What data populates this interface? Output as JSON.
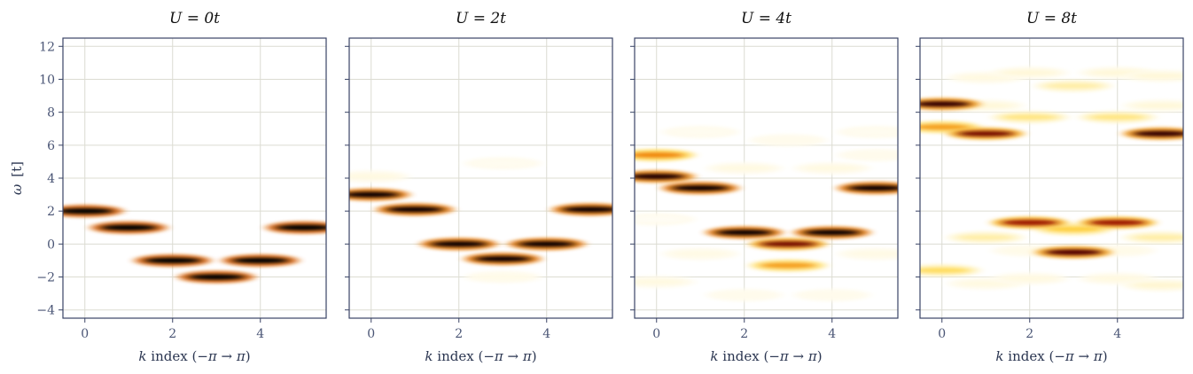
{
  "chart_data": {
    "type": "heatmap",
    "colormap": [
      "#ffffff",
      "#fff3c0",
      "#ffd84a",
      "#f08a10",
      "#b51d00",
      "#3a0000",
      "#000000"
    ],
    "grid": true,
    "x_tick_values": [
      0,
      2,
      4
    ],
    "x_tick_labels": [
      "0",
      "2",
      "4"
    ],
    "xlim": [
      -0.5,
      5.5
    ],
    "y_tick_values": [
      12,
      10,
      8,
      6,
      4,
      2,
      0,
      -2,
      -4
    ],
    "y_tick_labels": [
      "12",
      "10",
      "8",
      "6",
      "4",
      "2",
      "0",
      "−2",
      "−4"
    ],
    "ylim": [
      -4.5,
      12.5
    ],
    "xlabel_parts": {
      "var": "k",
      "text": " index (",
      "from": "−π",
      "arrow": " → ",
      "to": "π",
      "close": ")"
    },
    "ylabel_parts": {
      "var": "ω",
      "unit": "[t]"
    },
    "panels": [
      {
        "title": "U = 0t",
        "peaks": [
          {
            "k": 0,
            "w": 2.0,
            "a": 1.0
          },
          {
            "k": 1,
            "w": 1.0,
            "a": 1.0
          },
          {
            "k": 2,
            "w": -1.0,
            "a": 1.0
          },
          {
            "k": 3,
            "w": -2.0,
            "a": 1.0
          },
          {
            "k": 4,
            "w": -1.0,
            "a": 1.0
          },
          {
            "k": 5,
            "w": 1.0,
            "a": 1.0
          }
        ]
      },
      {
        "title": "U = 2t",
        "peaks": [
          {
            "k": 0,
            "w": 3.0,
            "a": 0.95
          },
          {
            "k": 1,
            "w": 2.1,
            "a": 0.95
          },
          {
            "k": 2,
            "w": 0.0,
            "a": 0.95
          },
          {
            "k": 3,
            "w": -0.9,
            "a": 0.95
          },
          {
            "k": 4,
            "w": 0.0,
            "a": 0.95
          },
          {
            "k": 5,
            "w": 2.1,
            "a": 0.95
          },
          {
            "k": 0,
            "w": 4.1,
            "a": 0.08
          },
          {
            "k": 3,
            "w": -2.0,
            "a": 0.06
          },
          {
            "k": 3,
            "w": 4.9,
            "a": 0.04
          }
        ]
      },
      {
        "title": "U = 4t",
        "peaks": [
          {
            "k": 0,
            "w": 4.1,
            "a": 0.9
          },
          {
            "k": 0,
            "w": 5.4,
            "a": 0.5
          },
          {
            "k": 1,
            "w": 3.4,
            "a": 0.95
          },
          {
            "k": 2,
            "w": 0.7,
            "a": 0.95
          },
          {
            "k": 3,
            "w": 0.0,
            "a": 0.75
          },
          {
            "k": 3,
            "w": -1.3,
            "a": 0.45
          },
          {
            "k": 4,
            "w": 0.7,
            "a": 0.95
          },
          {
            "k": 5,
            "w": 3.4,
            "a": 0.95
          },
          {
            "k": 0,
            "w": -2.3,
            "a": 0.08
          },
          {
            "k": 1,
            "w": -0.6,
            "a": 0.07
          },
          {
            "k": 2,
            "w": 4.6,
            "a": 0.08
          },
          {
            "k": 3,
            "w": 6.3,
            "a": 0.05
          },
          {
            "k": 4,
            "w": 4.6,
            "a": 0.08
          },
          {
            "k": 5,
            "w": -0.6,
            "a": 0.07
          },
          {
            "k": 1,
            "w": 6.8,
            "a": 0.04
          },
          {
            "k": 5,
            "w": 6.8,
            "a": 0.04
          },
          {
            "k": 2,
            "w": -3.1,
            "a": 0.05
          },
          {
            "k": 4,
            "w": -3.1,
            "a": 0.05
          },
          {
            "k": 0,
            "w": 1.5,
            "a": 0.03
          },
          {
            "k": 5,
            "w": 5.4,
            "a": 0.05
          }
        ]
      },
      {
        "title": "U = 8t",
        "peaks": [
          {
            "k": 0,
            "w": 8.5,
            "a": 0.85
          },
          {
            "k": 0,
            "w": 7.1,
            "a": 0.45
          },
          {
            "k": 1,
            "w": 6.7,
            "a": 0.75
          },
          {
            "k": 2,
            "w": 1.3,
            "a": 0.7
          },
          {
            "k": 3,
            "w": -0.5,
            "a": 0.8
          },
          {
            "k": 3,
            "w": 0.9,
            "a": 0.35
          },
          {
            "k": 4,
            "w": 1.3,
            "a": 0.7
          },
          {
            "k": 5,
            "w": 6.7,
            "a": 0.85
          },
          {
            "k": 0,
            "w": -1.6,
            "a": 0.3
          },
          {
            "k": 1,
            "w": 0.4,
            "a": 0.2
          },
          {
            "k": 5,
            "w": 0.4,
            "a": 0.2
          },
          {
            "k": 2,
            "w": 7.7,
            "a": 0.25
          },
          {
            "k": 4,
            "w": 7.7,
            "a": 0.25
          },
          {
            "k": 3,
            "w": 9.6,
            "a": 0.2
          },
          {
            "k": 2,
            "w": 10.4,
            "a": 0.1
          },
          {
            "k": 4,
            "w": 10.4,
            "a": 0.1
          },
          {
            "k": 1,
            "w": 10.1,
            "a": 0.08
          },
          {
            "k": 5,
            "w": 10.2,
            "a": 0.1
          },
          {
            "k": 1,
            "w": 8.4,
            "a": 0.1
          },
          {
            "k": 5,
            "w": 8.4,
            "a": 0.1
          },
          {
            "k": 1,
            "w": -2.4,
            "a": 0.08
          },
          {
            "k": 2,
            "w": -2.1,
            "a": 0.08
          },
          {
            "k": 4,
            "w": -2.1,
            "a": 0.08
          },
          {
            "k": 5,
            "w": -2.5,
            "a": 0.12
          },
          {
            "k": 2,
            "w": -0.4,
            "a": 0.06
          },
          {
            "k": 4,
            "w": -0.4,
            "a": 0.06
          }
        ]
      }
    ]
  }
}
